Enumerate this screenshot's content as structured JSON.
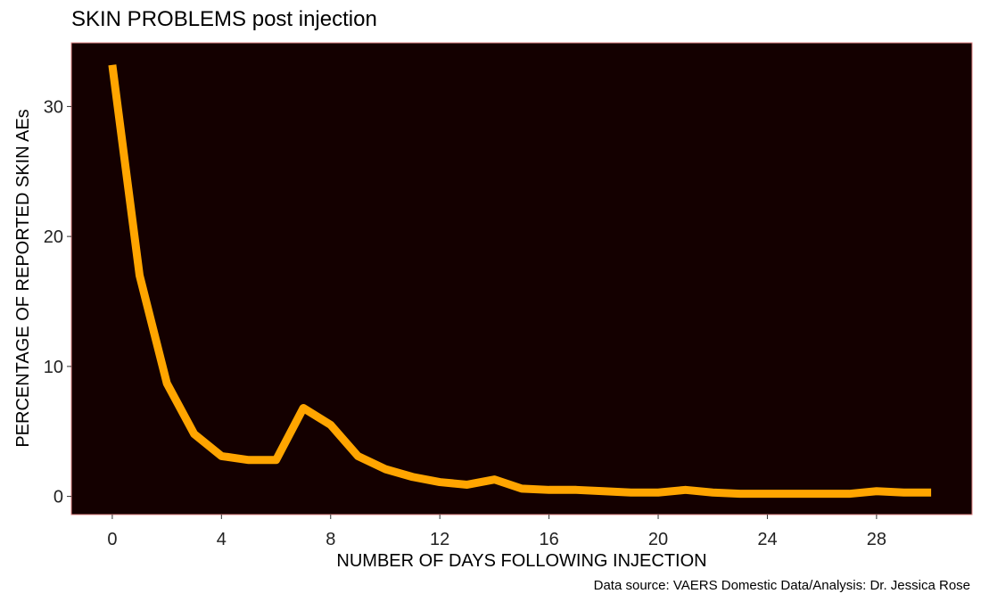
{
  "chart_data": {
    "type": "line",
    "title": "SKIN PROBLEMS post injection",
    "xlabel": "NUMBER OF DAYS FOLLOWING INJECTION",
    "ylabel": "PERCENTAGE OF REPORTED SKIN AEs",
    "caption": "Data source: VAERS Domestic Data/Analysis: Dr. Jessica Rose",
    "xlim": [
      -1.5,
      31.5
    ],
    "ylim": [
      -1.4,
      34.9
    ],
    "x_ticks": [
      0,
      4,
      8,
      12,
      16,
      20,
      24,
      28
    ],
    "y_ticks": [
      0,
      10,
      20,
      30
    ],
    "grid": false,
    "colors": {
      "panel_background": "#140000",
      "panel_border": "#e48a8a",
      "line": "#ffa500"
    },
    "series": [
      {
        "x": [
          0,
          1,
          2,
          3,
          4,
          5,
          6,
          7,
          8,
          9,
          10,
          11,
          12,
          13,
          14,
          15,
          16,
          17,
          18,
          19,
          20,
          21,
          22,
          23,
          24,
          25,
          26,
          27,
          28,
          29,
          30
        ],
        "values": [
          33.2,
          17.0,
          8.7,
          4.8,
          3.1,
          2.8,
          2.8,
          6.8,
          5.5,
          3.1,
          2.1,
          1.5,
          1.1,
          0.9,
          1.3,
          0.6,
          0.5,
          0.5,
          0.4,
          0.3,
          0.3,
          0.5,
          0.3,
          0.2,
          0.2,
          0.2,
          0.2,
          0.2,
          0.4,
          0.3,
          0.3
        ]
      }
    ]
  }
}
